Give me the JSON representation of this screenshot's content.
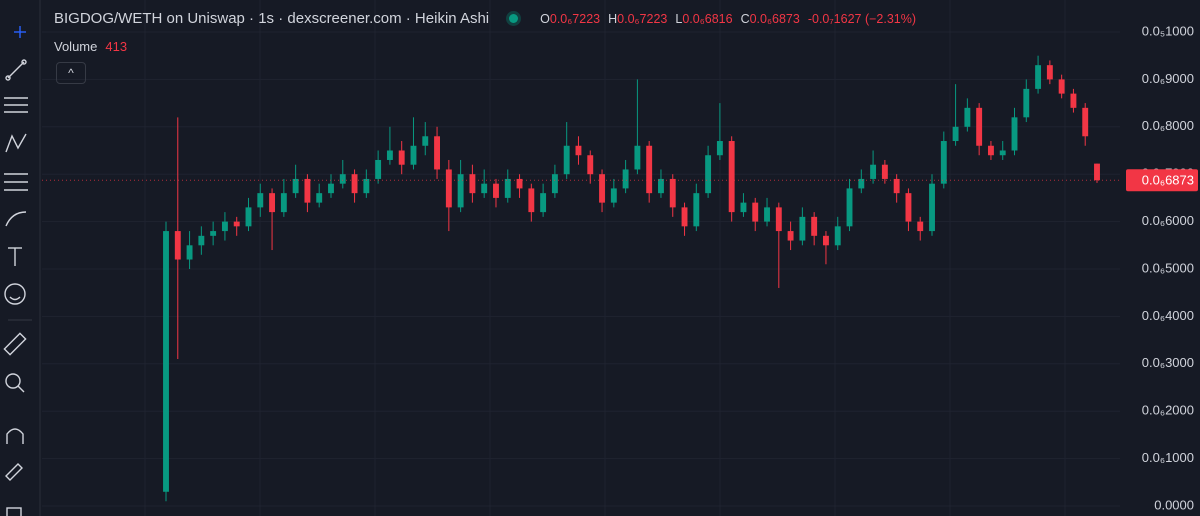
{
  "chart_data": {
    "type": "candlestick",
    "title": "BIGDOG/WETH on Uniswap · 1s · dexscreener.com · Heikin Ashi",
    "ohlc_legend": [
      {
        "key": "O",
        "value": "0.0₆7223"
      },
      {
        "key": "H",
        "value": "0.0₆7223"
      },
      {
        "key": "L",
        "value": "0.0₆6816"
      },
      {
        "key": "C",
        "value": "0.0₆6873"
      }
    ],
    "change": "-0.0₇1627 (−2.31%)",
    "volume_label": "Volume",
    "volume_value": "413",
    "up_color": "#089981",
    "down_color": "#f23645",
    "grid": true,
    "ylim": [
      -2.11e-08,
      1.0675e-06
    ],
    "yticks": [
      {
        "value": 1e-06,
        "label": "0.0₅1000"
      },
      {
        "value": 9e-07,
        "label": "0.0₆9000"
      },
      {
        "value": 8e-07,
        "label": "0.0₆8000"
      },
      {
        "value": 7e-07,
        "label": "0.0₆7000"
      },
      {
        "value": 6e-07,
        "label": "0.0₆6000"
      },
      {
        "value": 5e-07,
        "label": "0.0₆5000"
      },
      {
        "value": 4e-07,
        "label": "0.0₆4000"
      },
      {
        "value": 3e-07,
        "label": "0.0₆3000"
      },
      {
        "value": 2e-07,
        "label": "0.0₆2000"
      },
      {
        "value": 1e-07,
        "label": "0.0₆1000"
      },
      {
        "value": 0,
        "label": "0.0000"
      }
    ],
    "last_price": {
      "value": 6.873e-07,
      "label": "0.0₆6873"
    },
    "ohlc": [
      [
        3e-08,
        6e-07,
        1e-08,
        5.8e-07
      ],
      [
        5.8e-07,
        8.2e-07,
        3.1e-07,
        5.2e-07
      ],
      [
        5.2e-07,
        5.8e-07,
        5e-07,
        5.5e-07
      ],
      [
        5.5e-07,
        5.9e-07,
        5.3e-07,
        5.7e-07
      ],
      [
        5.7e-07,
        6e-07,
        5.5e-07,
        5.8e-07
      ],
      [
        5.8e-07,
        6.2e-07,
        5.6e-07,
        6e-07
      ],
      [
        6e-07,
        6.1e-07,
        5.7e-07,
        5.9e-07
      ],
      [
        5.9e-07,
        6.5e-07,
        5.8e-07,
        6.3e-07
      ],
      [
        6.3e-07,
        6.8e-07,
        6.1e-07,
        6.6e-07
      ],
      [
        6.6e-07,
        6.7e-07,
        5.4e-07,
        6.2e-07
      ],
      [
        6.2e-07,
        6.9e-07,
        6.1e-07,
        6.6e-07
      ],
      [
        6.6e-07,
        7.2e-07,
        6.5e-07,
        6.9e-07
      ],
      [
        6.9e-07,
        7e-07,
        6.2e-07,
        6.4e-07
      ],
      [
        6.4e-07,
        6.8e-07,
        6.3e-07,
        6.6e-07
      ],
      [
        6.6e-07,
        7e-07,
        6.5e-07,
        6.8e-07
      ],
      [
        6.8e-07,
        7.3e-07,
        6.7e-07,
        7e-07
      ],
      [
        7e-07,
        7.1e-07,
        6.4e-07,
        6.6e-07
      ],
      [
        6.6e-07,
        7.1e-07,
        6.5e-07,
        6.9e-07
      ],
      [
        6.9e-07,
        7.5e-07,
        6.8e-07,
        7.3e-07
      ],
      [
        7.3e-07,
        8e-07,
        7.2e-07,
        7.5e-07
      ],
      [
        7.5e-07,
        7.7e-07,
        7e-07,
        7.2e-07
      ],
      [
        7.2e-07,
        8.2e-07,
        7.1e-07,
        7.6e-07
      ],
      [
        7.6e-07,
        8.1e-07,
        7.4e-07,
        7.8e-07
      ],
      [
        7.8e-07,
        8e-07,
        6.9e-07,
        7.1e-07
      ],
      [
        7.1e-07,
        7.3e-07,
        5.8e-07,
        6.3e-07
      ],
      [
        6.3e-07,
        7.3e-07,
        6.2e-07,
        7e-07
      ],
      [
        7e-07,
        7.2e-07,
        6.4e-07,
        6.6e-07
      ],
      [
        6.6e-07,
        7.1e-07,
        6.5e-07,
        6.8e-07
      ],
      [
        6.8e-07,
        6.9e-07,
        6.3e-07,
        6.5e-07
      ],
      [
        6.5e-07,
        7.1e-07,
        6.4e-07,
        6.9e-07
      ],
      [
        6.9e-07,
        7e-07,
        6.5e-07,
        6.7e-07
      ],
      [
        6.7e-07,
        6.8e-07,
        6e-07,
        6.2e-07
      ],
      [
        6.2e-07,
        6.8e-07,
        6.1e-07,
        6.6e-07
      ],
      [
        6.6e-07,
        7.2e-07,
        6.5e-07,
        7e-07
      ],
      [
        7e-07,
        8.1e-07,
        6.9e-07,
        7.6e-07
      ],
      [
        7.6e-07,
        7.8e-07,
        7.2e-07,
        7.4e-07
      ],
      [
        7.4e-07,
        7.5e-07,
        6.8e-07,
        7e-07
      ],
      [
        7e-07,
        7.1e-07,
        6.2e-07,
        6.4e-07
      ],
      [
        6.4e-07,
        6.9e-07,
        6.3e-07,
        6.7e-07
      ],
      [
        6.7e-07,
        7.3e-07,
        6.6e-07,
        7.1e-07
      ],
      [
        7.1e-07,
        9e-07,
        7e-07,
        7.6e-07
      ],
      [
        7.6e-07,
        7.7e-07,
        6.4e-07,
        6.6e-07
      ],
      [
        6.6e-07,
        7.1e-07,
        6.5e-07,
        6.9e-07
      ],
      [
        6.9e-07,
        7e-07,
        6.1e-07,
        6.3e-07
      ],
      [
        6.3e-07,
        6.4e-07,
        5.7e-07,
        5.9e-07
      ],
      [
        5.9e-07,
        6.8e-07,
        5.8e-07,
        6.6e-07
      ],
      [
        6.6e-07,
        7.6e-07,
        6.5e-07,
        7.4e-07
      ],
      [
        7.4e-07,
        8.5e-07,
        7.3e-07,
        7.7e-07
      ],
      [
        7.7e-07,
        7.8e-07,
        6e-07,
        6.2e-07
      ],
      [
        6.2e-07,
        6.6e-07,
        6.1e-07,
        6.4e-07
      ],
      [
        6.4e-07,
        6.5e-07,
        5.8e-07,
        6e-07
      ],
      [
        6e-07,
        6.5e-07,
        5.9e-07,
        6.3e-07
      ],
      [
        6.3e-07,
        6.4e-07,
        4.6e-07,
        5.8e-07
      ],
      [
        5.8e-07,
        6e-07,
        5.4e-07,
        5.6e-07
      ],
      [
        5.6e-07,
        6.3e-07,
        5.5e-07,
        6.1e-07
      ],
      [
        6.1e-07,
        6.2e-07,
        5.5e-07,
        5.7e-07
      ],
      [
        5.7e-07,
        5.8e-07,
        5.1e-07,
        5.5e-07
      ],
      [
        5.5e-07,
        6.1e-07,
        5.4e-07,
        5.9e-07
      ],
      [
        5.9e-07,
        6.9e-07,
        5.8e-07,
        6.7e-07
      ],
      [
        6.7e-07,
        7.1e-07,
        6.6e-07,
        6.9e-07
      ],
      [
        6.9e-07,
        7.5e-07,
        6.8e-07,
        7.2e-07
      ],
      [
        7.2e-07,
        7.3e-07,
        6.8e-07,
        6.9e-07
      ],
      [
        6.9e-07,
        7e-07,
        6.4e-07,
        6.6e-07
      ],
      [
        6.6e-07,
        6.7e-07,
        5.8e-07,
        6e-07
      ],
      [
        6e-07,
        6.1e-07,
        5.6e-07,
        5.8e-07
      ],
      [
        5.8e-07,
        7e-07,
        5.7e-07,
        6.8e-07
      ],
      [
        6.8e-07,
        7.9e-07,
        6.7e-07,
        7.7e-07
      ],
      [
        7.7e-07,
        8.9e-07,
        7.6e-07,
        8e-07
      ],
      [
        8e-07,
        8.6e-07,
        7.9e-07,
        8.4e-07
      ],
      [
        8.4e-07,
        8.5e-07,
        7.4e-07,
        7.6e-07
      ],
      [
        7.6e-07,
        7.7e-07,
        7.3e-07,
        7.4e-07
      ],
      [
        7.4e-07,
        7.7e-07,
        7.3e-07,
        7.5e-07
      ],
      [
        7.5e-07,
        8.4e-07,
        7.4e-07,
        8.2e-07
      ],
      [
        8.2e-07,
        9e-07,
        8.1e-07,
        8.8e-07
      ],
      [
        8.8e-07,
        9.5e-07,
        8.7e-07,
        9.3e-07
      ],
      [
        9.3e-07,
        9.4e-07,
        8.9e-07,
        9e-07
      ],
      [
        9e-07,
        9.1e-07,
        8.6e-07,
        8.7e-07
      ],
      [
        8.7e-07,
        8.8e-07,
        8.3e-07,
        8.4e-07
      ],
      [
        8.4e-07,
        8.5e-07,
        7.6e-07,
        7.8e-07
      ],
      [
        7.223e-07,
        7.223e-07,
        6.816e-07,
        6.873e-07
      ]
    ]
  }
}
